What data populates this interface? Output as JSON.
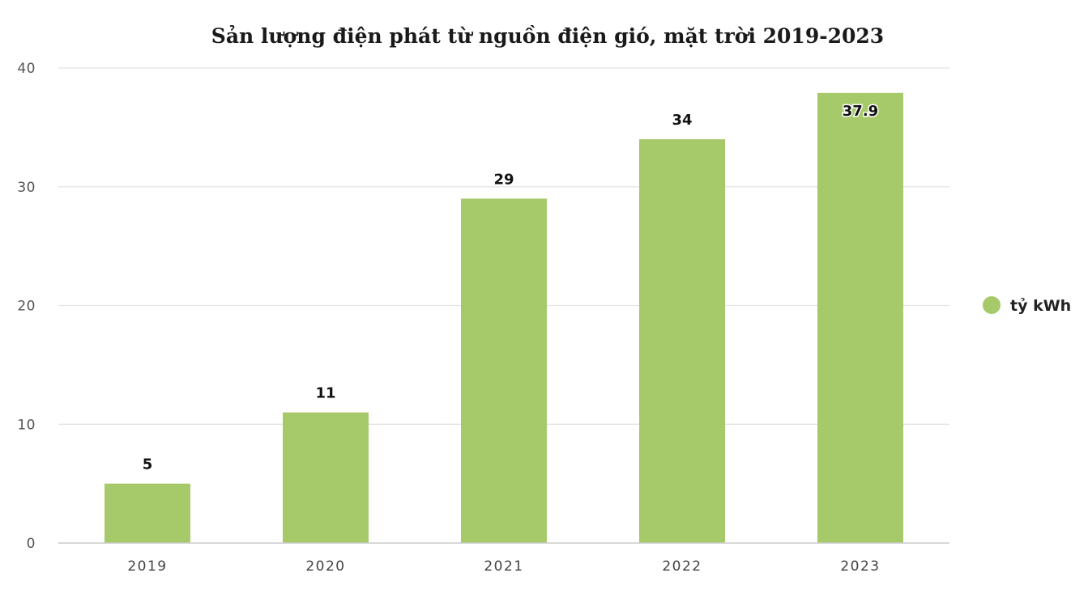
{
  "chart_data": {
    "type": "bar",
    "title": "Sản lượng điện phát từ nguồn điện gió, mặt trời 2019-2023",
    "categories": [
      "2019",
      "2020",
      "2021",
      "2022",
      "2023"
    ],
    "series": [
      {
        "name": "tỷ kWh",
        "values": [
          5,
          11,
          29,
          34,
          37.9
        ]
      }
    ],
    "data_labels": [
      "5",
      "11",
      "29",
      "34",
      "37.9"
    ],
    "ylim": [
      0,
      40
    ],
    "yticks": [
      0,
      10,
      20,
      30,
      40
    ],
    "xlabel": "",
    "ylabel": "",
    "grid": true,
    "legend_position": "right",
    "colors": {
      "bar": "#a6c96a",
      "grid": "#e3e3e3",
      "axis": "#cccccc"
    }
  }
}
